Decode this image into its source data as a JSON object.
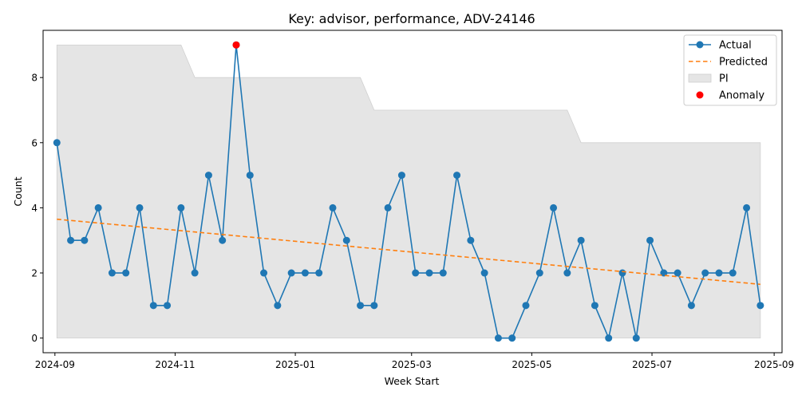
{
  "chart_data": {
    "type": "line",
    "title": "Key: advisor, performance, ADV-24146",
    "xlabel": "Week Start",
    "ylabel": "Count",
    "x_ticks": [
      "2024-09",
      "2024-11",
      "2025-01",
      "2025-03",
      "2025-05",
      "2025-07",
      "2025-09"
    ],
    "y_ticks": [
      "0",
      "2",
      "4",
      "6",
      "8"
    ],
    "xlim": [
      "2024-08-26",
      "2025-09-05"
    ],
    "ylim": [
      -0.45,
      9.45
    ],
    "grid": false,
    "legend_position": "top-right",
    "x": [
      "2024-09-02",
      "2024-09-09",
      "2024-09-16",
      "2024-09-23",
      "2024-09-30",
      "2024-10-07",
      "2024-10-14",
      "2024-10-21",
      "2024-10-28",
      "2024-11-04",
      "2024-11-11",
      "2024-11-18",
      "2024-11-25",
      "2024-12-02",
      "2024-12-09",
      "2024-12-16",
      "2024-12-23",
      "2024-12-30",
      "2025-01-06",
      "2025-01-13",
      "2025-01-20",
      "2025-01-27",
      "2025-02-03",
      "2025-02-10",
      "2025-02-17",
      "2025-02-24",
      "2025-03-03",
      "2025-03-10",
      "2025-03-17",
      "2025-03-24",
      "2025-03-31",
      "2025-04-07",
      "2025-04-14",
      "2025-04-21",
      "2025-04-28",
      "2025-05-05",
      "2025-05-12",
      "2025-05-19",
      "2025-05-26",
      "2025-06-02",
      "2025-06-09",
      "2025-06-16",
      "2025-06-23",
      "2025-06-30",
      "2025-07-07",
      "2025-07-14",
      "2025-07-21",
      "2025-07-28",
      "2025-08-04",
      "2025-08-11",
      "2025-08-18",
      "2025-08-25"
    ],
    "series": [
      {
        "name": "Actual",
        "color": "#1f77b4",
        "values": [
          6,
          3,
          3,
          4,
          2,
          2,
          4,
          1,
          1,
          4,
          2,
          5,
          3,
          9,
          5,
          2,
          1,
          2,
          2,
          2,
          4,
          3,
          1,
          1,
          4,
          5,
          2,
          2,
          2,
          5,
          3,
          2,
          0,
          0,
          1,
          2,
          4,
          2,
          3,
          1,
          0,
          2,
          0,
          3,
          2,
          2,
          1,
          2,
          2,
          2,
          4,
          1
        ]
      },
      {
        "name": "Predicted",
        "color": "#ff7f0e",
        "start": 3.65,
        "end": 1.65
      }
    ],
    "interval": {
      "name": "PI",
      "color": "#e5e5e5",
      "lower": 0,
      "upper": [
        9,
        9,
        9,
        9,
        9,
        9,
        9,
        9,
        9,
        9,
        8,
        8,
        8,
        8,
        8,
        8,
        8,
        8,
        8,
        8,
        8,
        8,
        8,
        7,
        7,
        7,
        7,
        7,
        7,
        7,
        7,
        7,
        7,
        7,
        7,
        7,
        7,
        7,
        6,
        6,
        6,
        6,
        6,
        6,
        6,
        6,
        6,
        6,
        6,
        6,
        6,
        6
      ]
    },
    "anomalies": {
      "name": "Anomaly",
      "color": "#ff0000",
      "points": [
        {
          "x": "2024-12-02",
          "y": 9
        }
      ]
    }
  }
}
